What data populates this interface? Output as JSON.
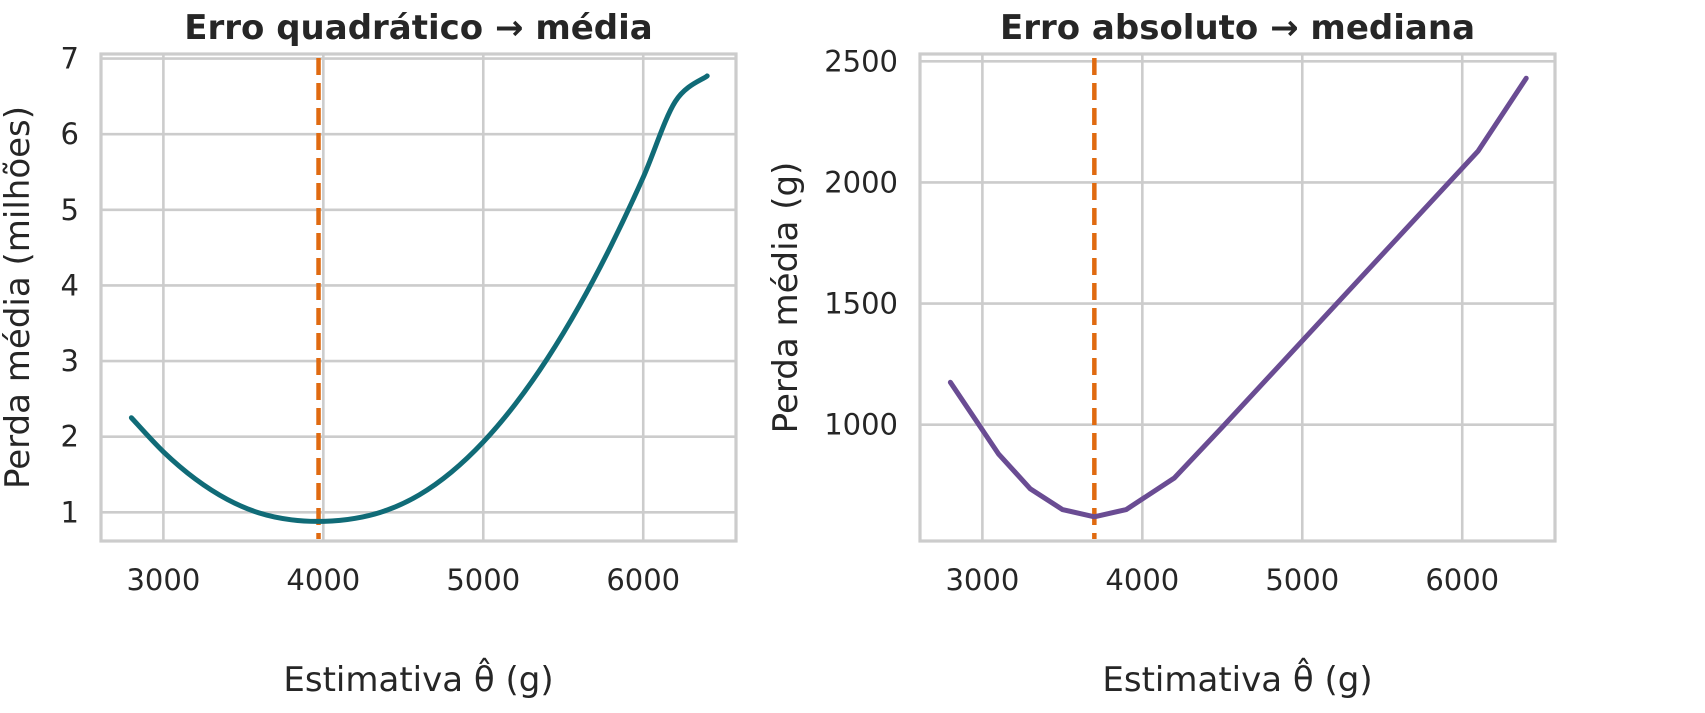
{
  "colors": {
    "squared_line": "#106b77",
    "absolute_line": "#6a4c93",
    "reference_line": "#e06a10",
    "grid": "#cccccc",
    "text": "#262626"
  },
  "chart_data": [
    {
      "type": "line",
      "title": "Erro quadrático → média",
      "xlabel": "Estimativa θ̂ (g)",
      "ylabel": "Perda média (milhões)",
      "xlim": [
        2610,
        6580
      ],
      "ylim": [
        0.62,
        7.06
      ],
      "xticks": [
        3000,
        4000,
        5000,
        6000
      ],
      "yticks": [
        1,
        2,
        3,
        4,
        5,
        6,
        7
      ],
      "grid": true,
      "series": [
        {
          "x": [
            2800,
            3000,
            3200,
            3400,
            3600,
            3800,
            4000,
            4200,
            4400,
            4600,
            4800,
            5000,
            5200,
            5400,
            5600,
            5800,
            6000,
            6200,
            6400
          ],
          "y": [
            2.25,
            1.8,
            1.44,
            1.17,
            0.99,
            0.9,
            0.88,
            0.92,
            1.03,
            1.23,
            1.53,
            1.93,
            2.43,
            3.03,
            3.73,
            4.53,
            5.43,
            6.43,
            6.77
          ]
        }
      ],
      "vline": {
        "x": 3970,
        "style": "dashed"
      }
    },
    {
      "type": "line",
      "title": "Erro absoluto → mediana",
      "xlabel": "Estimativa θ̂ (g)",
      "ylabel": "Perda média (g)",
      "xlim": [
        2610,
        6580
      ],
      "ylim": [
        520,
        2530
      ],
      "xticks": [
        3000,
        4000,
        5000,
        6000
      ],
      "yticks": [
        1000,
        1500,
        2000,
        2500
      ],
      "grid": true,
      "series": [
        {
          "x": [
            2800,
            3100,
            3300,
            3500,
            3700,
            3900,
            4200,
            4500,
            6100,
            6400
          ],
          "y": [
            1175,
            880,
            735,
            650,
            620,
            650,
            780,
            990,
            2130,
            2430
          ]
        }
      ],
      "vline": {
        "x": 3700,
        "style": "dashed"
      }
    }
  ]
}
